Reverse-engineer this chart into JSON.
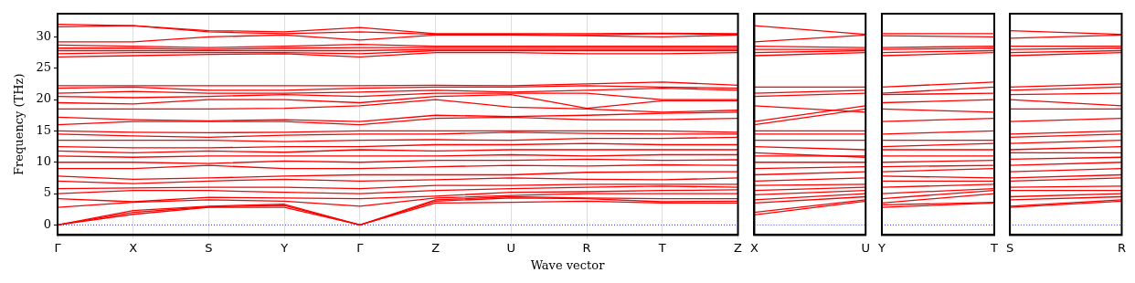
{
  "chart_data": [
    {
      "type": "line",
      "ylabel": "Frequency (THz)",
      "xlabel": "Wave vector",
      "categories": [
        "Γ",
        "X",
        "S",
        "Y",
        "Γ",
        "Z",
        "U",
        "R",
        "T",
        "Z"
      ],
      "ylim": [
        -1.6,
        33.7
      ],
      "yticks": [
        0,
        5,
        10,
        15,
        20,
        25,
        30
      ],
      "grid": "x",
      "ref_lines": [
        {
          "axis": "y",
          "value": 0,
          "color": "#0000ff",
          "line_style": "dotted"
        }
      ],
      "series": [
        {
          "color": "#ff0000",
          "values": [
            0,
            1.7,
            2.8,
            2.8,
            0,
            3.5,
            3.6,
            3.8,
            3.5,
            3.5
          ]
        },
        {
          "color": "#ff0000",
          "values": [
            0,
            2.0,
            2.9,
            3.1,
            0,
            3.8,
            4.3,
            4.2,
            3.7,
            3.8
          ]
        },
        {
          "color": "#ff0000",
          "values": [
            0,
            2.3,
            3.0,
            3.3,
            0,
            4.0,
            4.5,
            4.3,
            4.2,
            4.2
          ]
        },
        {
          "color": "#ff0000",
          "values": [
            2.8,
            3.6,
            4.0,
            3.8,
            3.0,
            4.3,
            4.7,
            5.0,
            5.0,
            5.0
          ]
        },
        {
          "color": "#ff0000",
          "values": [
            4.2,
            3.7,
            4.4,
            4.3,
            4.2,
            4.6,
            5.2,
            5.3,
            5.5,
            5.6
          ]
        },
        {
          "color": "#ff0000",
          "values": [
            5.0,
            5.5,
            5.5,
            5.2,
            5.0,
            5.5,
            5.8,
            6.0,
            6.2,
            6.0
          ]
        },
        {
          "color": "#ff0000",
          "values": [
            5.8,
            5.9,
            6.0,
            6.0,
            5.8,
            6.3,
            6.3,
            6.5,
            6.5,
            6.5
          ]
        },
        {
          "color": "#ff0000",
          "values": [
            7.0,
            6.6,
            7.0,
            7.3,
            7.0,
            7.2,
            7.5,
            7.3,
            7.2,
            7.5
          ]
        },
        {
          "color": "#ff0000",
          "values": [
            7.8,
            7.3,
            7.5,
            7.8,
            8.0,
            8.0,
            8.0,
            8.4,
            8.5,
            8.5
          ]
        },
        {
          "color": "#ff0000",
          "values": [
            9.0,
            9.0,
            9.5,
            9.0,
            9.0,
            9.3,
            9.5,
            9.4,
            9.6,
            9.5
          ]
        },
        {
          "color": "#ff0000",
          "values": [
            10.0,
            10.0,
            9.8,
            10.2,
            10.0,
            10.3,
            10.3,
            10.5,
            10.3,
            10.4
          ]
        },
        {
          "color": "#ff0000",
          "values": [
            11.0,
            10.8,
            11.0,
            11.0,
            11.0,
            11.0,
            11.2,
            11.0,
            11.2,
            11.2
          ]
        },
        {
          "color": "#ff0000",
          "values": [
            11.8,
            11.5,
            11.8,
            11.6,
            12.0,
            11.8,
            12.0,
            12.0,
            12.0,
            12.0
          ]
        },
        {
          "color": "#ff0000",
          "values": [
            12.5,
            12.3,
            12.3,
            12.5,
            12.5,
            12.8,
            12.8,
            13.0,
            12.8,
            12.8
          ]
        },
        {
          "color": "#ff0000",
          "values": [
            13.5,
            13.5,
            13.5,
            13.3,
            13.5,
            13.6,
            13.5,
            13.8,
            13.8,
            14.0
          ]
        },
        {
          "color": "#ff0000",
          "values": [
            14.5,
            14.2,
            14.0,
            14.3,
            14.5,
            14.5,
            14.8,
            14.6,
            14.5,
            14.5
          ]
        },
        {
          "color": "#ff0000",
          "values": [
            15.0,
            14.8,
            14.7,
            14.8,
            15.0,
            15.0,
            15.0,
            15.0,
            15.0,
            14.8
          ]
        },
        {
          "color": "#ff0000",
          "values": [
            16.0,
            16.5,
            16.5,
            16.5,
            16.0,
            17.0,
            17.2,
            16.8,
            16.8,
            17.0
          ]
        },
        {
          "color": "#ff0000",
          "values": [
            17.2,
            16.8,
            16.6,
            16.8,
            16.5,
            17.5,
            17.3,
            17.5,
            17.8,
            18.0
          ]
        },
        {
          "color": "#ff0000",
          "values": [
            18.5,
            18.5,
            18.5,
            18.6,
            19.0,
            20.0,
            18.8,
            18.5,
            18.0,
            18.3
          ]
        },
        {
          "color": "#ff0000",
          "values": [
            19.5,
            19.3,
            20.0,
            20.0,
            19.5,
            20.5,
            20.8,
            18.6,
            19.8,
            19.8
          ]
        },
        {
          "color": "#ff0000",
          "values": [
            20.5,
            20.3,
            20.5,
            20.8,
            20.5,
            21.0,
            21.0,
            21.0,
            20.0,
            20.0
          ]
        },
        {
          "color": "#ff0000",
          "values": [
            21.0,
            21.3,
            21.0,
            21.0,
            21.2,
            21.5,
            21.2,
            21.5,
            21.8,
            21.5
          ]
        },
        {
          "color": "#ff0000",
          "values": [
            21.8,
            22.0,
            21.5,
            21.5,
            21.8,
            22.0,
            22.0,
            22.2,
            22.0,
            21.8
          ]
        },
        {
          "color": "#ff0000",
          "values": [
            22.2,
            22.2,
            22.2,
            22.2,
            22.2,
            22.3,
            22.2,
            22.5,
            22.8,
            22.3
          ]
        },
        {
          "color": "#ff0000",
          "values": [
            26.8,
            27.0,
            27.2,
            27.3,
            26.8,
            27.5,
            27.5,
            27.3,
            27.3,
            27.5
          ]
        },
        {
          "color": "#ff0000",
          "values": [
            27.3,
            27.5,
            27.5,
            27.5,
            27.3,
            27.8,
            27.8,
            27.8,
            27.8,
            27.8
          ]
        },
        {
          "color": "#ff0000",
          "values": [
            27.8,
            27.8,
            27.8,
            27.8,
            27.8,
            28.0,
            28.0,
            28.0,
            28.0,
            28.0
          ]
        },
        {
          "color": "#ff0000",
          "values": [
            28.2,
            28.2,
            28.0,
            28.2,
            28.3,
            28.3,
            28.3,
            28.3,
            28.3,
            28.3
          ]
        },
        {
          "color": "#ff0000",
          "values": [
            28.7,
            28.5,
            28.3,
            28.5,
            28.8,
            28.5,
            28.5,
            28.5,
            28.5,
            28.5
          ]
        },
        {
          "color": "#ff0000",
          "values": [
            29.2,
            29.2,
            30.0,
            30.3,
            29.5,
            30.3,
            30.3,
            30.2,
            30.0,
            30.3
          ]
        },
        {
          "color": "#ff0000",
          "values": [
            31.6,
            31.8,
            30.8,
            30.5,
            30.8,
            30.4,
            30.4,
            30.3,
            30.5,
            30.4
          ]
        },
        {
          "color": "#ff0000",
          "values": [
            32.0,
            31.8,
            31.0,
            30.8,
            31.5,
            30.5,
            30.5,
            30.5,
            30.6,
            30.5
          ]
        }
      ]
    },
    {
      "type": "line",
      "categories": [
        "X",
        "U"
      ],
      "ylim": [
        -1.6,
        33.7
      ],
      "yticks": [
        0,
        5,
        10,
        15,
        20,
        25,
        30
      ],
      "tick_labels": "x",
      "ref_lines": [
        {
          "axis": "y",
          "value": 0,
          "color": "#0000ff",
          "line_style": "dotted"
        }
      ],
      "series": [
        {
          "color": "#ff0000",
          "values": [
            1.6,
            3.8
          ]
        },
        {
          "color": "#ff0000",
          "values": [
            2.0,
            4.0
          ]
        },
        {
          "color": "#ff0000",
          "values": [
            3.5,
            4.5
          ]
        },
        {
          "color": "#ff0000",
          "values": [
            4.0,
            5.0
          ]
        },
        {
          "color": "#ff0000",
          "values": [
            4.8,
            5.5
          ]
        },
        {
          "color": "#ff0000",
          "values": [
            5.5,
            6.0
          ]
        },
        {
          "color": "#ff0000",
          "values": [
            6.3,
            6.5
          ]
        },
        {
          "color": "#ff0000",
          "values": [
            7.0,
            7.5
          ]
        },
        {
          "color": "#ff0000",
          "values": [
            8.0,
            8.5
          ]
        },
        {
          "color": "#ff0000",
          "values": [
            9.0,
            9.3
          ]
        },
        {
          "color": "#ff0000",
          "values": [
            10.0,
            10.0
          ]
        },
        {
          "color": "#ff0000",
          "values": [
            11.0,
            11.0
          ]
        },
        {
          "color": "#ff0000",
          "values": [
            11.5,
            10.8
          ]
        },
        {
          "color": "#ff0000",
          "values": [
            12.5,
            12.0
          ]
        },
        {
          "color": "#ff0000",
          "values": [
            13.5,
            13.5
          ]
        },
        {
          "color": "#ff0000",
          "values": [
            14.5,
            14.5
          ]
        },
        {
          "color": "#ff0000",
          "values": [
            15.0,
            15.0
          ]
        },
        {
          "color": "#ff0000",
          "values": [
            16.0,
            18.5
          ]
        },
        {
          "color": "#ff0000",
          "values": [
            16.5,
            19.0
          ]
        },
        {
          "color": "#ff0000",
          "values": [
            19.0,
            18.0
          ]
        },
        {
          "color": "#ff0000",
          "values": [
            20.5,
            21.0
          ]
        },
        {
          "color": "#ff0000",
          "values": [
            21.0,
            21.5
          ]
        },
        {
          "color": "#ff0000",
          "values": [
            22.0,
            22.0
          ]
        },
        {
          "color": "#ff0000",
          "values": [
            27.0,
            27.5
          ]
        },
        {
          "color": "#ff0000",
          "values": [
            27.5,
            27.8
          ]
        },
        {
          "color": "#ff0000",
          "values": [
            28.0,
            28.0
          ]
        },
        {
          "color": "#ff0000",
          "values": [
            28.5,
            28.3
          ]
        },
        {
          "color": "#ff0000",
          "values": [
            29.2,
            30.3
          ]
        },
        {
          "color": "#ff0000",
          "values": [
            31.8,
            30.4
          ]
        }
      ]
    },
    {
      "type": "line",
      "categories": [
        "Y",
        "T"
      ],
      "ylim": [
        -1.6,
        33.7
      ],
      "yticks": [
        0,
        5,
        10,
        15,
        20,
        25,
        30
      ],
      "tick_labels": "x",
      "ref_lines": [
        {
          "axis": "y",
          "value": 0,
          "color": "#0000ff",
          "line_style": "dotted"
        }
      ],
      "series": [
        {
          "color": "#ff0000",
          "values": [
            2.8,
            3.5
          ]
        },
        {
          "color": "#ff0000",
          "values": [
            3.2,
            3.6
          ]
        },
        {
          "color": "#ff0000",
          "values": [
            3.5,
            5.0
          ]
        },
        {
          "color": "#ff0000",
          "values": [
            4.2,
            5.5
          ]
        },
        {
          "color": "#ff0000",
          "values": [
            5.0,
            5.8
          ]
        },
        {
          "color": "#ff0000",
          "values": [
            6.0,
            6.5
          ]
        },
        {
          "color": "#ff0000",
          "values": [
            7.0,
            7.0
          ]
        },
        {
          "color": "#ff0000",
          "values": [
            7.8,
            7.5
          ]
        },
        {
          "color": "#ff0000",
          "values": [
            8.5,
            9.0
          ]
        },
        {
          "color": "#ff0000",
          "values": [
            9.3,
            9.5
          ]
        },
        {
          "color": "#ff0000",
          "values": [
            10.0,
            10.3
          ]
        },
        {
          "color": "#ff0000",
          "values": [
            11.0,
            11.0
          ]
        },
        {
          "color": "#ff0000",
          "values": [
            12.0,
            12.0
          ]
        },
        {
          "color": "#ff0000",
          "values": [
            12.5,
            13.0
          ]
        },
        {
          "color": "#ff0000",
          "values": [
            13.5,
            13.5
          ]
        },
        {
          "color": "#ff0000",
          "values": [
            14.5,
            15.0
          ]
        },
        {
          "color": "#ff0000",
          "values": [
            16.5,
            17.0
          ]
        },
        {
          "color": "#ff0000",
          "values": [
            18.5,
            18.0
          ]
        },
        {
          "color": "#ff0000",
          "values": [
            19.5,
            20.0
          ]
        },
        {
          "color": "#ff0000",
          "values": [
            20.8,
            21.0
          ]
        },
        {
          "color": "#ff0000",
          "values": [
            21.0,
            22.0
          ]
        },
        {
          "color": "#ff0000",
          "values": [
            22.0,
            22.8
          ]
        },
        {
          "color": "#ff0000",
          "values": [
            27.0,
            27.5
          ]
        },
        {
          "color": "#ff0000",
          "values": [
            27.5,
            27.8
          ]
        },
        {
          "color": "#ff0000",
          "values": [
            28.0,
            28.2
          ]
        },
        {
          "color": "#ff0000",
          "values": [
            28.3,
            28.5
          ]
        },
        {
          "color": "#ff0000",
          "values": [
            30.2,
            30.0
          ]
        },
        {
          "color": "#ff0000",
          "values": [
            30.5,
            30.5
          ]
        }
      ]
    },
    {
      "type": "line",
      "categories": [
        "S",
        "R"
      ],
      "ylim": [
        -1.6,
        33.7
      ],
      "yticks": [
        0,
        5,
        10,
        15,
        20,
        25,
        30
      ],
      "tick_labels": "x",
      "ref_lines": [
        {
          "axis": "y",
          "value": 0,
          "color": "#0000ff",
          "line_style": "dotted"
        }
      ],
      "series": [
        {
          "color": "#ff0000",
          "values": [
            2.8,
            3.8
          ]
        },
        {
          "color": "#ff0000",
          "values": [
            3.0,
            4.0
          ]
        },
        {
          "color": "#ff0000",
          "values": [
            4.0,
            4.5
          ]
        },
        {
          "color": "#ff0000",
          "values": [
            4.5,
            5.0
          ]
        },
        {
          "color": "#ff0000",
          "values": [
            5.5,
            5.5
          ]
        },
        {
          "color": "#ff0000",
          "values": [
            6.0,
            6.2
          ]
        },
        {
          "color": "#ff0000",
          "values": [
            7.0,
            7.5
          ]
        },
        {
          "color": "#ff0000",
          "values": [
            7.5,
            8.0
          ]
        },
        {
          "color": "#ff0000",
          "values": [
            8.5,
            9.0
          ]
        },
        {
          "color": "#ff0000",
          "values": [
            9.5,
            10.0
          ]
        },
        {
          "color": "#ff0000",
          "values": [
            10.5,
            10.8
          ]
        },
        {
          "color": "#ff0000",
          "values": [
            11.5,
            11.5
          ]
        },
        {
          "color": "#ff0000",
          "values": [
            12.0,
            12.5
          ]
        },
        {
          "color": "#ff0000",
          "values": [
            13.0,
            13.5
          ]
        },
        {
          "color": "#ff0000",
          "values": [
            14.0,
            14.5
          ]
        },
        {
          "color": "#ff0000",
          "values": [
            14.5,
            15.0
          ]
        },
        {
          "color": "#ff0000",
          "values": [
            16.5,
            17.0
          ]
        },
        {
          "color": "#ff0000",
          "values": [
            18.5,
            18.5
          ]
        },
        {
          "color": "#ff0000",
          "values": [
            20.0,
            19.0
          ]
        },
        {
          "color": "#ff0000",
          "values": [
            20.8,
            21.0
          ]
        },
        {
          "color": "#ff0000",
          "values": [
            21.5,
            22.0
          ]
        },
        {
          "color": "#ff0000",
          "values": [
            22.0,
            22.5
          ]
        },
        {
          "color": "#ff0000",
          "values": [
            27.0,
            27.5
          ]
        },
        {
          "color": "#ff0000",
          "values": [
            27.5,
            27.8
          ]
        },
        {
          "color": "#ff0000",
          "values": [
            28.0,
            28.2
          ]
        },
        {
          "color": "#ff0000",
          "values": [
            28.5,
            28.5
          ]
        },
        {
          "color": "#ff0000",
          "values": [
            29.8,
            30.3
          ]
        },
        {
          "color": "#ff0000",
          "values": [
            31.0,
            30.4
          ]
        }
      ]
    }
  ]
}
